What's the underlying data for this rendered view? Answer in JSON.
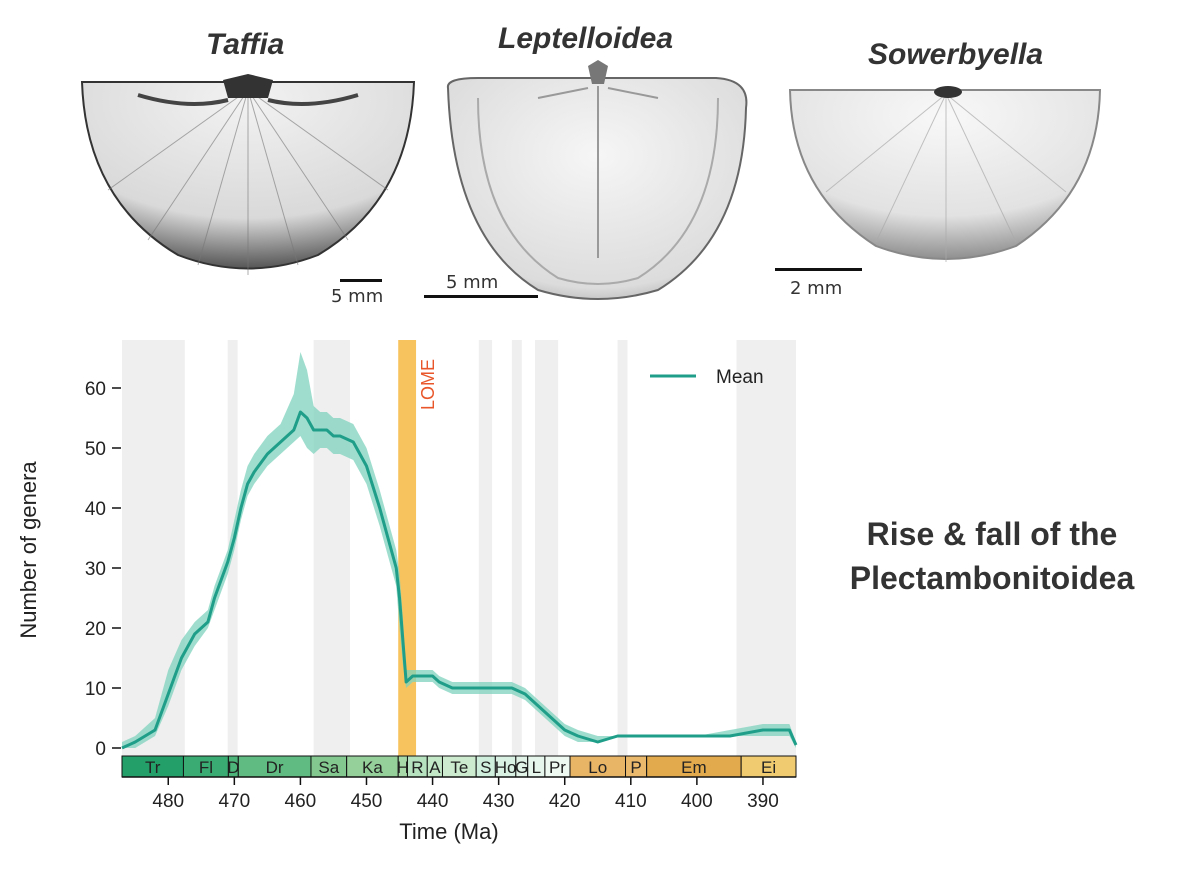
{
  "specimens": [
    {
      "genus": "Taffia",
      "scale": "5 mm"
    },
    {
      "genus": "Leptelloidea",
      "scale": "5 mm"
    },
    {
      "genus": "Sowerbyella",
      "scale": "2 mm"
    }
  ],
  "headline": {
    "line1": "Rise & fall of the",
    "line2": "Plectambonitoidea"
  },
  "colors": {
    "mean_line": "#1f9e89",
    "band": "#7fd3bd",
    "lome": "#f5b942",
    "lome_text": "#e8562a",
    "shade": "#efefef"
  },
  "chart_data": {
    "type": "line",
    "title": "",
    "xlabel": "Time (Ma)",
    "ylabel": "Number of genera",
    "xlim": [
      487,
      385
    ],
    "ylim": [
      -2,
      68
    ],
    "xticks": [
      480,
      470,
      460,
      450,
      440,
      430,
      420,
      410,
      400,
      390
    ],
    "yticks": [
      0,
      10,
      20,
      30,
      40,
      50,
      60
    ],
    "legend": {
      "label": "Mean",
      "position": "top-right"
    },
    "annotation": {
      "label": "LOME",
      "x_start": 445.2,
      "x_end": 442.5
    },
    "shaded_intervals": [
      [
        487,
        477.5
      ],
      [
        471,
        469.5
      ],
      [
        458,
        452.5
      ],
      [
        433,
        431
      ],
      [
        428,
        426.5
      ],
      [
        424.5,
        421
      ],
      [
        412,
        410.5
      ],
      [
        394,
        385
      ]
    ],
    "stages": [
      {
        "label": "Tr",
        "start": 487,
        "end": 477.7,
        "color": "#23a06a"
      },
      {
        "label": "Fl",
        "start": 477.7,
        "end": 470.9,
        "color": "#3bab74"
      },
      {
        "label": "D",
        "start": 470.9,
        "end": 469.4,
        "color": "#4db57a"
      },
      {
        "label": "Dr",
        "start": 469.4,
        "end": 458.4,
        "color": "#5fbb81"
      },
      {
        "label": "Sa",
        "start": 458.4,
        "end": 453.0,
        "color": "#82c88f"
      },
      {
        "label": "Ka",
        "start": 453.0,
        "end": 445.2,
        "color": "#95d09a"
      },
      {
        "label": "H",
        "start": 445.2,
        "end": 443.8,
        "color": "#a6d9a7"
      },
      {
        "label": "R",
        "start": 443.8,
        "end": 440.8,
        "color": "#b6e2bf"
      },
      {
        "label": "A",
        "start": 440.8,
        "end": 438.5,
        "color": "#c2e8c7"
      },
      {
        "label": "Te",
        "start": 438.5,
        "end": 433.4,
        "color": "#cdeccf"
      },
      {
        "label": "S",
        "start": 433.4,
        "end": 430.5,
        "color": "#cfeedc"
      },
      {
        "label": "Ho",
        "start": 430.5,
        "end": 427.4,
        "color": "#d9f1e2"
      },
      {
        "label": "G",
        "start": 427.4,
        "end": 425.6,
        "color": "#e0f3e6"
      },
      {
        "label": "L",
        "start": 425.6,
        "end": 423.0,
        "color": "#e7f6ec"
      },
      {
        "label": "Pr",
        "start": 423.0,
        "end": 419.2,
        "color": "#eef9f1"
      },
      {
        "label": "Lo",
        "start": 419.2,
        "end": 410.8,
        "color": "#e8b466"
      },
      {
        "label": "P",
        "start": 410.8,
        "end": 407.6,
        "color": "#eab96c"
      },
      {
        "label": "Em",
        "start": 407.6,
        "end": 393.3,
        "color": "#e2a94d"
      },
      {
        "label": "Ei",
        "start": 393.3,
        "end": 385.0,
        "color": "#f0cb70"
      }
    ],
    "series": [
      {
        "name": "Mean",
        "x": [
          487,
          485,
          482,
          480,
          478,
          476,
          474,
          473,
          472,
          471,
          470,
          469,
          468,
          467,
          465,
          463,
          461,
          460,
          459,
          458,
          457,
          456,
          455,
          454,
          452,
          450,
          448,
          446.5,
          445.5,
          445,
          444.5,
          444,
          443,
          442,
          441,
          440,
          439,
          437,
          435,
          433,
          430,
          428,
          426,
          424,
          422,
          420,
          418,
          415,
          412,
          411,
          405,
          400,
          395,
          390,
          388,
          386,
          385
        ],
        "y": [
          0,
          1,
          3,
          9,
          15,
          19,
          21,
          25,
          28,
          31,
          35,
          40,
          44,
          46,
          49,
          51,
          53,
          56,
          55,
          53,
          53,
          53,
          52,
          52,
          51,
          47,
          40,
          34,
          30,
          25,
          18,
          11,
          12,
          12,
          12,
          12,
          11,
          10,
          10,
          10,
          10,
          10,
          9,
          7,
          5,
          3,
          2,
          1,
          2,
          2,
          2,
          2,
          2,
          3,
          3,
          3,
          0.5
        ],
        "lower": [
          0,
          0,
          2,
          7,
          13,
          17,
          20,
          23,
          26,
          29,
          33,
          38,
          42,
          44,
          47,
          49,
          51,
          52,
          50,
          49,
          50,
          50,
          49,
          49,
          48,
          44,
          37,
          31,
          27,
          20,
          14,
          10,
          11,
          11,
          11,
          11,
          10,
          9,
          9,
          9,
          9,
          9,
          8,
          6,
          4,
          2,
          1,
          1,
          2,
          2,
          2,
          2,
          2,
          2,
          2,
          2,
          0
        ],
        "upper": [
          1,
          2,
          5,
          13,
          18,
          21,
          23,
          27,
          30,
          33,
          38,
          43,
          47,
          49,
          52,
          54,
          59,
          66,
          63,
          57,
          56,
          56,
          55,
          55,
          54,
          50,
          43,
          37,
          33,
          29,
          22,
          13,
          13,
          13,
          13,
          13,
          12,
          11,
          11,
          11,
          11,
          11,
          10,
          8,
          6,
          4,
          3,
          2,
          2,
          2,
          2,
          2,
          3,
          4,
          4,
          4,
          1
        ]
      }
    ]
  }
}
